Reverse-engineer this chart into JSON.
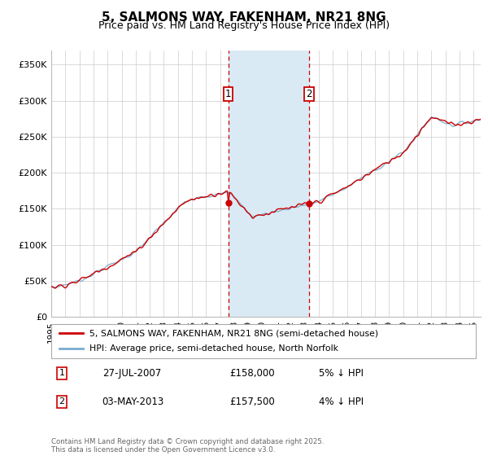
{
  "title": "5, SALMONS WAY, FAKENHAM, NR21 8NG",
  "subtitle": "Price paid vs. HM Land Registry's House Price Index (HPI)",
  "yticks": [
    0,
    50000,
    100000,
    150000,
    200000,
    250000,
    300000,
    350000
  ],
  "ytick_labels": [
    "£0",
    "£50K",
    "£100K",
    "£150K",
    "£200K",
    "£250K",
    "£300K",
    "£350K"
  ],
  "ylim": [
    0,
    370000
  ],
  "xlim_start": 1995.0,
  "xlim_end": 2025.5,
  "line1_color": "#cc0000",
  "line2_color": "#7aabcf",
  "shade_color": "#daeaf4",
  "marker1_date": 2007.57,
  "marker2_date": 2013.33,
  "marker1_price": 158000,
  "marker2_price": 157500,
  "marker1_label": "1",
  "marker2_label": "2",
  "legend_label1": "5, SALMONS WAY, FAKENHAM, NR21 8NG (semi-detached house)",
  "legend_label2": "HPI: Average price, semi-detached house, North Norfolk",
  "note1_num": "1",
  "note1_date": "27-JUL-2007",
  "note1_price": "£158,000",
  "note1_hpi": "5% ↓ HPI",
  "note2_num": "2",
  "note2_date": "03-MAY-2013",
  "note2_price": "£157,500",
  "note2_hpi": "4% ↓ HPI",
  "footer": "Contains HM Land Registry data © Crown copyright and database right 2025.\nThis data is licensed under the Open Government Licence v3.0.",
  "bg_color": "#ffffff",
  "grid_color": "#cccccc",
  "title_fontsize": 11,
  "subtitle_fontsize": 9,
  "tick_fontsize": 8
}
